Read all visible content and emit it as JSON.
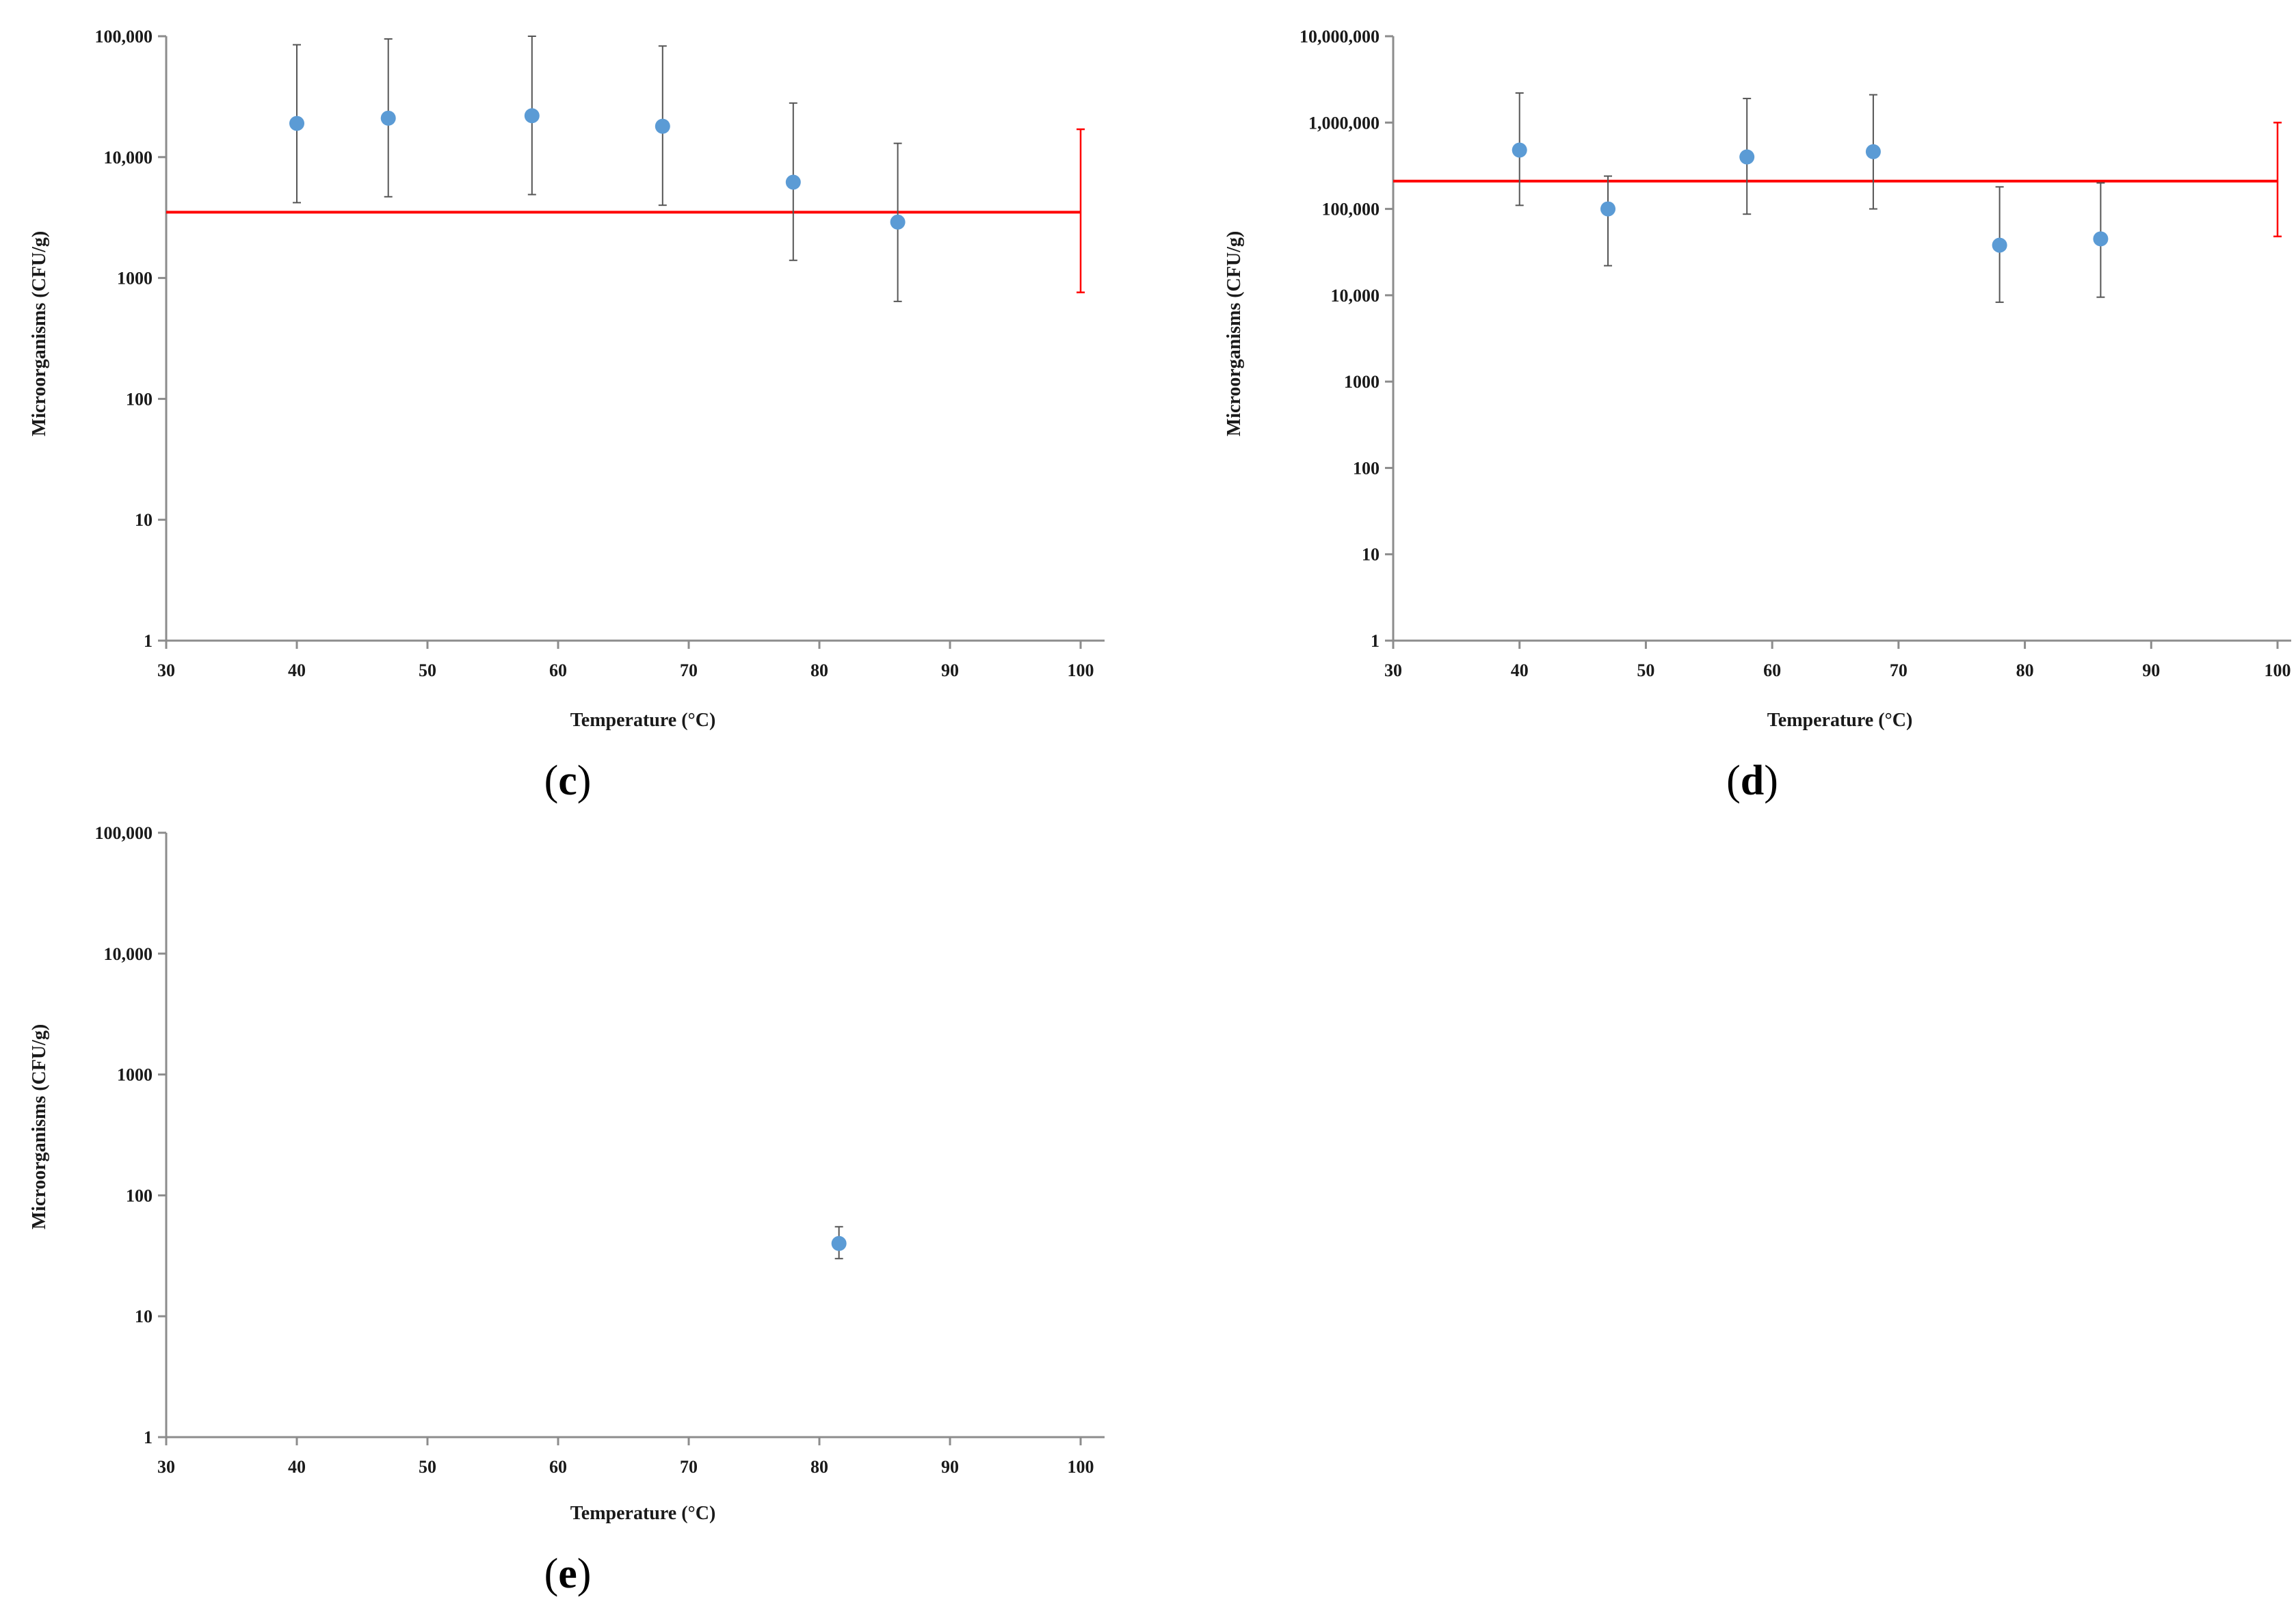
{
  "colors": {
    "point": "#5b9bd5",
    "reference": "#ff0000",
    "error_bar": "#555555",
    "axis": "#8c8c8c"
  },
  "chart_data": [
    {
      "panel": "c",
      "label": "(c)",
      "label_letter": "c",
      "type": "scatter",
      "xlabel": "Temperature (°C)",
      "ylabel": "Microorganisms (CFU/g)",
      "xlim": [
        30,
        100
      ],
      "x_ticks": [
        30,
        40,
        50,
        60,
        70,
        80,
        90,
        100
      ],
      "x_tick_labels": [
        "30",
        "40",
        "50",
        "60",
        "70",
        "80",
        "90",
        "100"
      ],
      "yscale": "log",
      "ylim": [
        1,
        100000
      ],
      "y_ticks": [
        1,
        10,
        100,
        1000,
        10000,
        100000
      ],
      "y_tick_labels": [
        "1",
        "10",
        "100",
        "1000",
        "10,000",
        "100,000"
      ],
      "points": [
        {
          "x": 40,
          "y": 19000,
          "low": 4200,
          "high": 85000
        },
        {
          "x": 47,
          "y": 21000,
          "low": 4700,
          "high": 95000
        },
        {
          "x": 58,
          "y": 22000,
          "low": 4900,
          "high": 100000
        },
        {
          "x": 68,
          "y": 18000,
          "low": 4000,
          "high": 83000
        },
        {
          "x": 78,
          "y": 6200,
          "low": 1400,
          "high": 28000
        },
        {
          "x": 86,
          "y": 2900,
          "low": 640,
          "high": 13000
        }
      ],
      "reference": {
        "y": 3500,
        "x_from": 30,
        "x_to": 100,
        "err_low": 760,
        "err_high": 17000,
        "err_x": 100
      }
    },
    {
      "panel": "d",
      "label": "(d)",
      "label_letter": "d",
      "type": "scatter",
      "xlabel": "Temperature (°C)",
      "ylabel": "Microorganisms (CFU/g)",
      "xlim": [
        30,
        100
      ],
      "x_ticks": [
        30,
        40,
        50,
        60,
        70,
        80,
        90,
        100
      ],
      "x_tick_labels": [
        "30",
        "40",
        "50",
        "60",
        "70",
        "80",
        "90",
        "100"
      ],
      "yscale": "log",
      "ylim": [
        1,
        10000000
      ],
      "y_ticks": [
        1,
        10,
        100,
        1000,
        10000,
        100000,
        1000000,
        10000000
      ],
      "y_tick_labels": [
        "1",
        "10",
        "100",
        "1000",
        "10,000",
        "100,000",
        "1,000,000",
        "10,000,000"
      ],
      "points": [
        {
          "x": 40,
          "y": 480000,
          "low": 110000,
          "high": 2200000
        },
        {
          "x": 47,
          "y": 100000,
          "low": 22000,
          "high": 240000
        },
        {
          "x": 58,
          "y": 400000,
          "low": 87000,
          "high": 1900000
        },
        {
          "x": 68,
          "y": 460000,
          "low": 100000,
          "high": 2100000
        },
        {
          "x": 78,
          "y": 38000,
          "low": 8300,
          "high": 180000
        },
        {
          "x": 86,
          "y": 45000,
          "low": 9500,
          "high": 200000
        }
      ],
      "reference": {
        "y": 210000,
        "x_from": 30,
        "x_to": 100,
        "err_low": 48000,
        "err_high": 1000000,
        "err_x": 100
      }
    },
    {
      "panel": "e",
      "label": "(e)",
      "label_letter": "e",
      "type": "scatter",
      "xlabel": "Temperature (°C)",
      "ylabel": "Microorganisms (CFU/g)",
      "xlim": [
        30,
        100
      ],
      "x_ticks": [
        30,
        40,
        50,
        60,
        70,
        80,
        90,
        100
      ],
      "x_tick_labels": [
        "30",
        "40",
        "50",
        "60",
        "70",
        "80",
        "90",
        "100"
      ],
      "yscale": "log",
      "ylim": [
        1,
        100000
      ],
      "y_ticks": [
        1,
        10,
        100,
        1000,
        10000,
        100000
      ],
      "y_tick_labels": [
        "1",
        "10",
        "100",
        "1000",
        "10,000",
        "100,000"
      ],
      "points": [
        {
          "x": 81.5,
          "y": 40,
          "low": 30,
          "high": 55
        }
      ],
      "reference": null
    }
  ]
}
